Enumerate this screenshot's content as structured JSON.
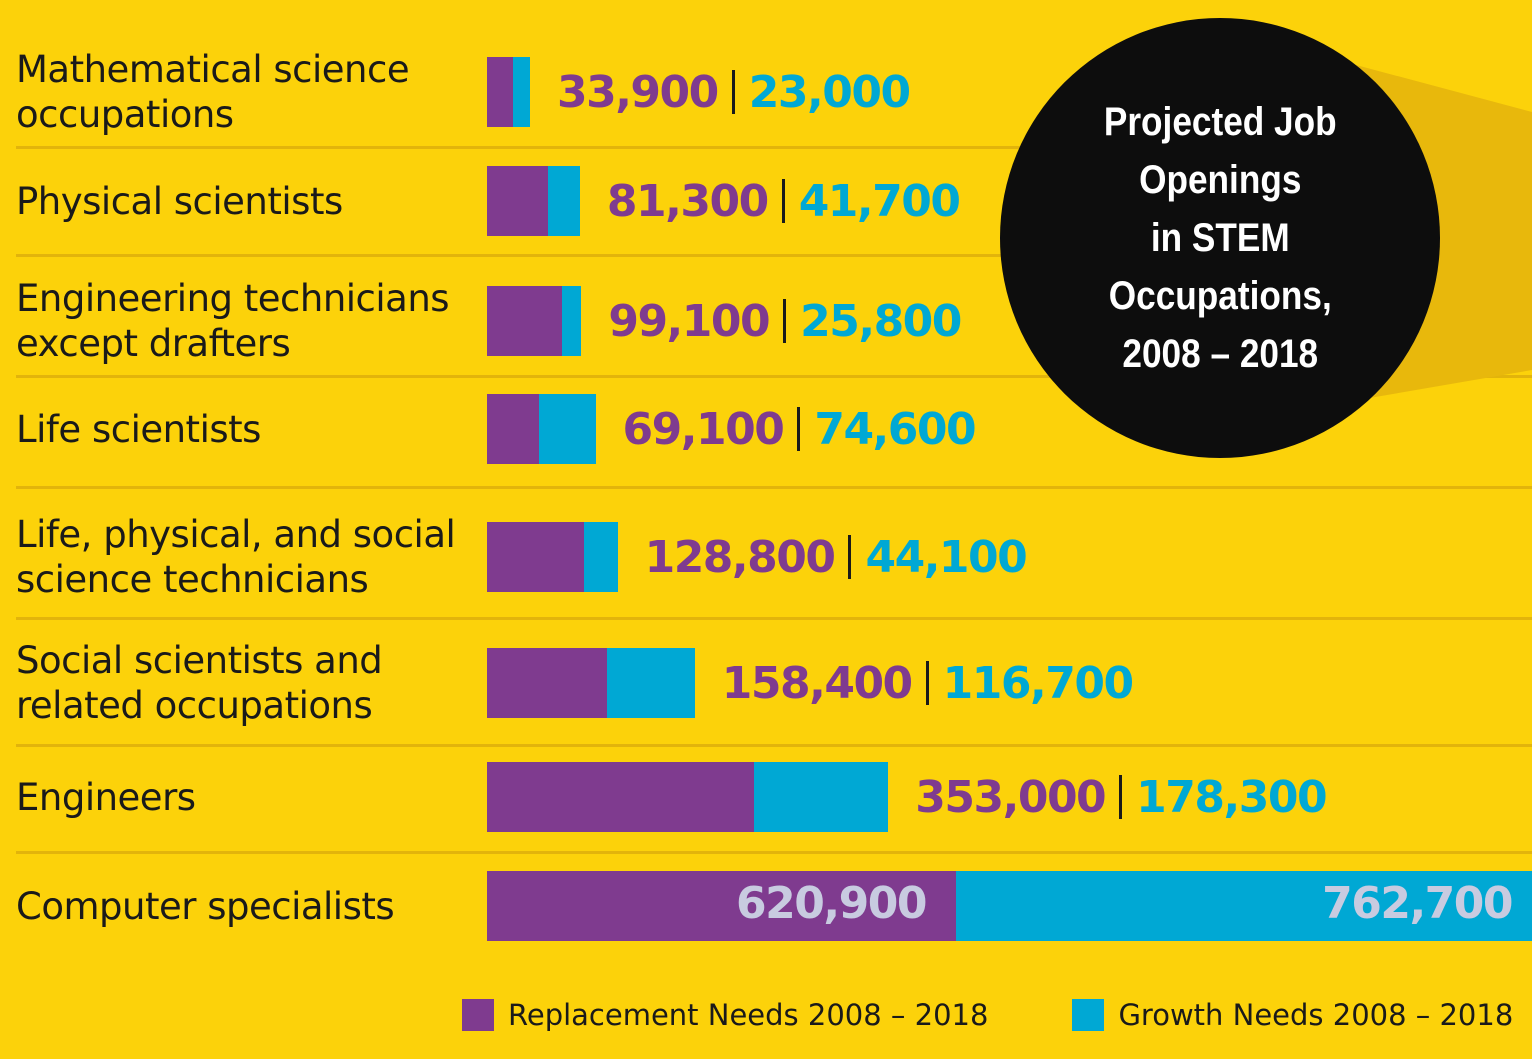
{
  "colors": {
    "background": "#fcd20a",
    "divider": "#e2b40b",
    "replacement": "#7f3b8f",
    "growth": "#00a8d4",
    "text": "#1a1a1a",
    "badge": "#0d0d0d"
  },
  "chart_data": {
    "type": "bar",
    "orientation": "horizontal",
    "stacked": true,
    "title": "Projected Job\nOpenings\nin STEM\nOccupations,\n2008 – 2018",
    "categories": [
      "Mathematical science\noccupations",
      "Physical scientists",
      "Engineering technicians\nexcept drafters",
      "Life scientists",
      "Life, physical, and social\nscience technicians",
      "Social scientists and\nrelated occupations",
      "Engineers",
      "Computer specialists"
    ],
    "series": [
      {
        "name": "Replacement Needs 2008 – 2018",
        "values": [
          33900,
          81300,
          99100,
          69100,
          128800,
          158400,
          353000,
          620900
        ],
        "labels": [
          "33,900",
          "81,300",
          "99,100",
          "69,100",
          "128,800",
          "158,400",
          "353,000",
          "620,900"
        ]
      },
      {
        "name": "Growth Needs 2008 – 2018",
        "values": [
          23000,
          41700,
          25800,
          74600,
          44100,
          116700,
          178300,
          762700
        ],
        "labels": [
          "23,000",
          "41,700",
          "25,800",
          "74,600",
          "44,100",
          "116,700",
          "178,300",
          "762,700"
        ]
      }
    ],
    "legend_position": "bottom",
    "grid": false
  }
}
